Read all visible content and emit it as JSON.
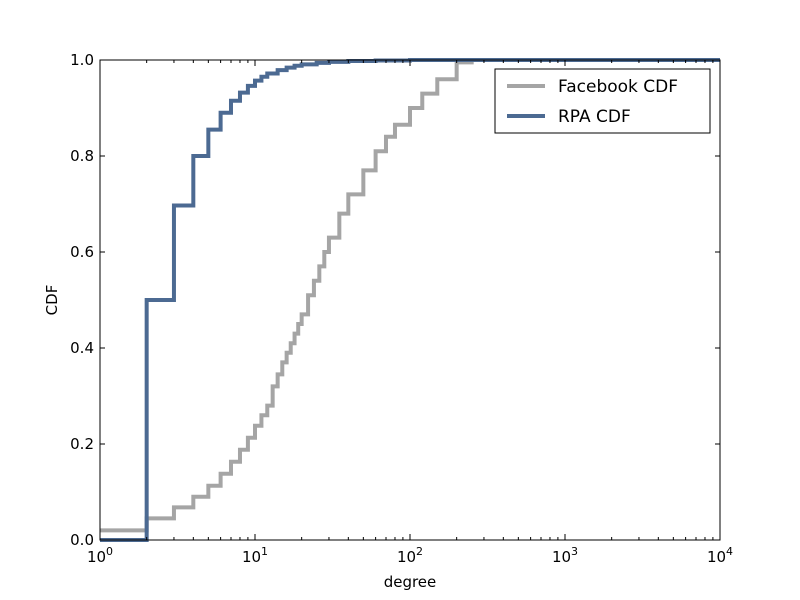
{
  "chart_data": {
    "type": "line",
    "title": "",
    "xlabel": "degree",
    "ylabel": "CDF",
    "xscale": "log",
    "xlim": [
      1,
      10000
    ],
    "ylim": [
      0,
      1
    ],
    "grid": false,
    "legend_position": "top-right",
    "x_ticks": [
      {
        "value": 1,
        "base": "10",
        "exp": "0"
      },
      {
        "value": 10,
        "base": "10",
        "exp": "1"
      },
      {
        "value": 100,
        "base": "10",
        "exp": "2"
      },
      {
        "value": 1000,
        "base": "10",
        "exp": "3"
      },
      {
        "value": 10000,
        "base": "10",
        "exp": "4"
      }
    ],
    "y_ticks": [
      {
        "value": 0.0,
        "label": "0.0"
      },
      {
        "value": 0.2,
        "label": "0.2"
      },
      {
        "value": 0.4,
        "label": "0.4"
      },
      {
        "value": 0.6,
        "label": "0.6"
      },
      {
        "value": 0.8,
        "label": "0.8"
      },
      {
        "value": 1.0,
        "label": "1.0"
      }
    ],
    "series": [
      {
        "name": "Facebook CDF",
        "color": "#a5a5a5",
        "step": "post",
        "x": [
          1,
          2,
          3,
          4,
          5,
          6,
          7,
          8,
          9,
          10,
          11,
          12,
          13,
          14,
          15,
          16,
          17,
          18,
          19,
          20,
          22,
          24,
          26,
          28,
          30,
          35,
          40,
          50,
          60,
          70,
          80,
          100,
          120,
          150,
          200,
          250,
          300
        ],
        "y": [
          0.02,
          0.045,
          0.068,
          0.09,
          0.113,
          0.138,
          0.163,
          0.188,
          0.213,
          0.238,
          0.26,
          0.28,
          0.32,
          0.345,
          0.37,
          0.39,
          0.41,
          0.43,
          0.45,
          0.47,
          0.51,
          0.54,
          0.57,
          0.6,
          0.63,
          0.68,
          0.72,
          0.77,
          0.81,
          0.84,
          0.865,
          0.9,
          0.93,
          0.96,
          0.995,
          1.0,
          1.0
        ]
      },
      {
        "name": "RPA CDF",
        "color": "#4c6a92",
        "step": "post",
        "x": [
          1,
          2,
          3,
          4,
          5,
          6,
          7,
          8,
          9,
          10,
          11,
          12,
          14,
          16,
          18,
          20,
          25,
          30,
          40,
          60,
          100
        ],
        "y": [
          0.0,
          0.5,
          0.697,
          0.8,
          0.855,
          0.89,
          0.915,
          0.932,
          0.946,
          0.957,
          0.965,
          0.972,
          0.979,
          0.984,
          0.988,
          0.991,
          0.994,
          0.996,
          0.998,
          0.999,
          1.0
        ]
      }
    ]
  }
}
